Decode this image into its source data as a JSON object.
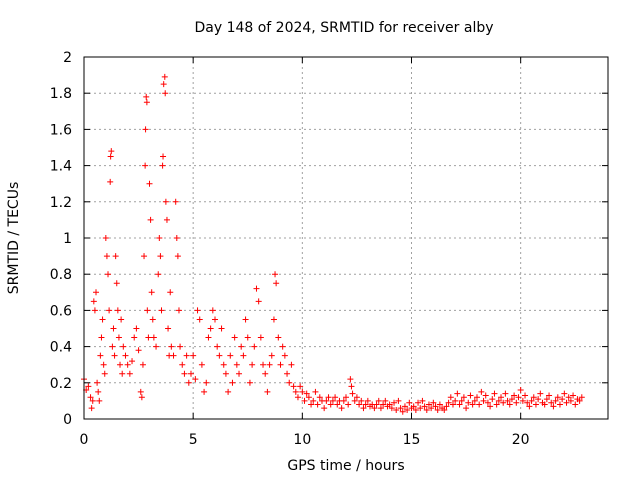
{
  "chart_data": {
    "type": "scatter",
    "title": "Day 148 of 2024, SRMTID for receiver alby",
    "xlabel": "GPS time / hours",
    "ylabel": "SRMTID / TECUs",
    "xlim": [
      0,
      24.0
    ],
    "ylim": [
      0,
      2
    ],
    "xticks": [
      0,
      5,
      10,
      15,
      20
    ],
    "xtick_labels": [
      "0",
      "5",
      "10",
      "15",
      "20"
    ],
    "yticks": [
      0,
      0.2,
      0.4,
      0.6,
      0.8,
      1,
      1.2,
      1.4,
      1.6,
      1.8,
      2
    ],
    "ytick_labels": [
      "0",
      "0.2",
      "0.4",
      "0.6",
      "0.8",
      "1",
      "1.2",
      "1.4",
      "1.6",
      "1.8",
      "2"
    ],
    "grid": true,
    "marker": "+",
    "color": "#ff0000",
    "series": [
      {
        "name": "SRMTID",
        "points": [
          [
            0.0,
            0.22
          ],
          [
            0.1,
            0.16
          ],
          [
            0.2,
            0.18
          ],
          [
            0.3,
            0.12
          ],
          [
            0.35,
            0.06
          ],
          [
            0.4,
            0.1
          ],
          [
            0.45,
            0.65
          ],
          [
            0.5,
            0.6
          ],
          [
            0.55,
            0.7
          ],
          [
            0.6,
            0.2
          ],
          [
            0.65,
            0.15
          ],
          [
            0.7,
            0.1
          ],
          [
            0.75,
            0.35
          ],
          [
            0.8,
            0.45
          ],
          [
            0.85,
            0.55
          ],
          [
            0.9,
            0.3
          ],
          [
            0.95,
            0.25
          ],
          [
            1.0,
            1.0
          ],
          [
            1.05,
            0.9
          ],
          [
            1.1,
            0.8
          ],
          [
            1.15,
            0.6
          ],
          [
            1.2,
            1.31
          ],
          [
            1.22,
            1.45
          ],
          [
            1.25,
            1.48
          ],
          [
            1.3,
            0.4
          ],
          [
            1.35,
            0.5
          ],
          [
            1.4,
            0.35
          ],
          [
            1.45,
            0.9
          ],
          [
            1.5,
            0.75
          ],
          [
            1.55,
            0.6
          ],
          [
            1.6,
            0.45
          ],
          [
            1.65,
            0.3
          ],
          [
            1.7,
            0.55
          ],
          [
            1.75,
            0.25
          ],
          [
            1.8,
            0.4
          ],
          [
            1.9,
            0.35
          ],
          [
            2.0,
            0.3
          ],
          [
            2.1,
            0.25
          ],
          [
            2.2,
            0.32
          ],
          [
            2.3,
            0.45
          ],
          [
            2.4,
            0.5
          ],
          [
            2.5,
            0.38
          ],
          [
            2.6,
            0.15
          ],
          [
            2.65,
            0.12
          ],
          [
            2.7,
            0.3
          ],
          [
            2.75,
            0.9
          ],
          [
            2.8,
            1.4
          ],
          [
            2.82,
            1.6
          ],
          [
            2.85,
            1.78
          ],
          [
            2.88,
            1.75
          ],
          [
            2.9,
            0.6
          ],
          [
            2.95,
            0.45
          ],
          [
            3.0,
            1.3
          ],
          [
            3.05,
            1.1
          ],
          [
            3.1,
            0.7
          ],
          [
            3.15,
            0.55
          ],
          [
            3.2,
            0.45
          ],
          [
            3.3,
            0.4
          ],
          [
            3.4,
            0.8
          ],
          [
            3.45,
            1.0
          ],
          [
            3.5,
            0.9
          ],
          [
            3.55,
            0.6
          ],
          [
            3.6,
            1.4
          ],
          [
            3.62,
            1.45
          ],
          [
            3.65,
            1.85
          ],
          [
            3.7,
            1.89
          ],
          [
            3.72,
            1.8
          ],
          [
            3.75,
            1.2
          ],
          [
            3.8,
            1.1
          ],
          [
            3.85,
            0.5
          ],
          [
            3.9,
            0.35
          ],
          [
            3.95,
            0.7
          ],
          [
            4.0,
            0.4
          ],
          [
            4.1,
            0.35
          ],
          [
            4.2,
            1.2
          ],
          [
            4.25,
            1.0
          ],
          [
            4.3,
            0.9
          ],
          [
            4.35,
            0.6
          ],
          [
            4.4,
            0.4
          ],
          [
            4.5,
            0.3
          ],
          [
            4.6,
            0.25
          ],
          [
            4.7,
            0.35
          ],
          [
            4.8,
            0.2
          ],
          [
            4.9,
            0.25
          ],
          [
            5.0,
            0.35
          ],
          [
            5.1,
            0.22
          ],
          [
            5.2,
            0.6
          ],
          [
            5.3,
            0.55
          ],
          [
            5.4,
            0.3
          ],
          [
            5.5,
            0.15
          ],
          [
            5.6,
            0.2
          ],
          [
            5.7,
            0.45
          ],
          [
            5.8,
            0.5
          ],
          [
            5.9,
            0.6
          ],
          [
            6.0,
            0.55
          ],
          [
            6.1,
            0.4
          ],
          [
            6.2,
            0.35
          ],
          [
            6.3,
            0.5
          ],
          [
            6.4,
            0.3
          ],
          [
            6.5,
            0.25
          ],
          [
            6.6,
            0.15
          ],
          [
            6.7,
            0.35
          ],
          [
            6.8,
            0.2
          ],
          [
            6.9,
            0.45
          ],
          [
            7.0,
            0.3
          ],
          [
            7.1,
            0.25
          ],
          [
            7.2,
            0.4
          ],
          [
            7.3,
            0.35
          ],
          [
            7.4,
            0.55
          ],
          [
            7.5,
            0.45
          ],
          [
            7.6,
            0.2
          ],
          [
            7.7,
            0.3
          ],
          [
            7.8,
            0.4
          ],
          [
            7.9,
            0.72
          ],
          [
            8.0,
            0.65
          ],
          [
            8.1,
            0.45
          ],
          [
            8.2,
            0.3
          ],
          [
            8.3,
            0.25
          ],
          [
            8.4,
            0.15
          ],
          [
            8.5,
            0.3
          ],
          [
            8.6,
            0.35
          ],
          [
            8.7,
            0.55
          ],
          [
            8.75,
            0.8
          ],
          [
            8.8,
            0.75
          ],
          [
            8.9,
            0.45
          ],
          [
            9.0,
            0.3
          ],
          [
            9.1,
            0.4
          ],
          [
            9.2,
            0.35
          ],
          [
            9.3,
            0.25
          ],
          [
            9.4,
            0.2
          ],
          [
            9.5,
            0.3
          ],
          [
            9.6,
            0.18
          ],
          [
            9.7,
            0.15
          ],
          [
            9.8,
            0.12
          ],
          [
            9.9,
            0.18
          ],
          [
            10.0,
            0.15
          ],
          [
            10.1,
            0.1
          ],
          [
            10.2,
            0.14
          ],
          [
            10.3,
            0.12
          ],
          [
            10.4,
            0.08
          ],
          [
            10.5,
            0.1
          ],
          [
            10.6,
            0.15
          ],
          [
            10.7,
            0.08
          ],
          [
            10.8,
            0.12
          ],
          [
            10.9,
            0.1
          ],
          [
            11.0,
            0.06
          ],
          [
            11.1,
            0.1
          ],
          [
            11.2,
            0.12
          ],
          [
            11.3,
            0.08
          ],
          [
            11.4,
            0.1
          ],
          [
            11.5,
            0.12
          ],
          [
            11.6,
            0.08
          ],
          [
            11.7,
            0.1
          ],
          [
            11.8,
            0.06
          ],
          [
            11.9,
            0.1
          ],
          [
            12.0,
            0.12
          ],
          [
            12.1,
            0.08
          ],
          [
            12.2,
            0.22
          ],
          [
            12.25,
            0.18
          ],
          [
            12.3,
            0.14
          ],
          [
            12.4,
            0.1
          ],
          [
            12.5,
            0.12
          ],
          [
            12.6,
            0.08
          ],
          [
            12.7,
            0.1
          ],
          [
            12.8,
            0.06
          ],
          [
            12.9,
            0.08
          ],
          [
            13.0,
            0.1
          ],
          [
            13.1,
            0.07
          ],
          [
            13.2,
            0.08
          ],
          [
            13.3,
            0.06
          ],
          [
            13.4,
            0.08
          ],
          [
            13.5,
            0.1
          ],
          [
            13.6,
            0.06
          ],
          [
            13.7,
            0.08
          ],
          [
            13.8,
            0.1
          ],
          [
            13.9,
            0.07
          ],
          [
            14.0,
            0.08
          ],
          [
            14.1,
            0.06
          ],
          [
            14.2,
            0.09
          ],
          [
            14.3,
            0.05
          ],
          [
            14.4,
            0.1
          ],
          [
            14.5,
            0.06
          ],
          [
            14.6,
            0.04
          ],
          [
            14.7,
            0.07
          ],
          [
            14.8,
            0.05
          ],
          [
            14.9,
            0.09
          ],
          [
            15.0,
            0.06
          ],
          [
            15.1,
            0.07
          ],
          [
            15.2,
            0.05
          ],
          [
            15.3,
            0.09
          ],
          [
            15.4,
            0.06
          ],
          [
            15.5,
            0.1
          ],
          [
            15.6,
            0.07
          ],
          [
            15.7,
            0.05
          ],
          [
            15.8,
            0.08
          ],
          [
            15.9,
            0.06
          ],
          [
            16.0,
            0.09
          ],
          [
            16.1,
            0.07
          ],
          [
            16.2,
            0.05
          ],
          [
            16.3,
            0.08
          ],
          [
            16.4,
            0.06
          ],
          [
            16.5,
            0.05
          ],
          [
            16.6,
            0.07
          ],
          [
            16.7,
            0.09
          ],
          [
            16.8,
            0.12
          ],
          [
            16.9,
            0.08
          ],
          [
            17.0,
            0.1
          ],
          [
            17.1,
            0.14
          ],
          [
            17.2,
            0.08
          ],
          [
            17.3,
            0.1
          ],
          [
            17.4,
            0.12
          ],
          [
            17.5,
            0.06
          ],
          [
            17.6,
            0.09
          ],
          [
            17.7,
            0.13
          ],
          [
            17.8,
            0.08
          ],
          [
            17.9,
            0.1
          ],
          [
            18.0,
            0.12
          ],
          [
            18.1,
            0.08
          ],
          [
            18.2,
            0.15
          ],
          [
            18.3,
            0.1
          ],
          [
            18.4,
            0.13
          ],
          [
            18.5,
            0.09
          ],
          [
            18.6,
            0.07
          ],
          [
            18.7,
            0.11
          ],
          [
            18.8,
            0.14
          ],
          [
            18.9,
            0.08
          ],
          [
            19.0,
            0.1
          ],
          [
            19.1,
            0.12
          ],
          [
            19.2,
            0.09
          ],
          [
            19.3,
            0.14
          ],
          [
            19.4,
            0.1
          ],
          [
            19.5,
            0.08
          ],
          [
            19.6,
            0.11
          ],
          [
            19.7,
            0.13
          ],
          [
            19.8,
            0.09
          ],
          [
            19.9,
            0.12
          ],
          [
            20.0,
            0.16
          ],
          [
            20.1,
            0.1
          ],
          [
            20.2,
            0.13
          ],
          [
            20.3,
            0.09
          ],
          [
            20.4,
            0.07
          ],
          [
            20.5,
            0.1
          ],
          [
            20.6,
            0.12
          ],
          [
            20.7,
            0.08
          ],
          [
            20.8,
            0.11
          ],
          [
            20.9,
            0.14
          ],
          [
            21.0,
            0.09
          ],
          [
            21.1,
            0.08
          ],
          [
            21.2,
            0.11
          ],
          [
            21.3,
            0.13
          ],
          [
            21.4,
            0.09
          ],
          [
            21.5,
            0.07
          ],
          [
            21.6,
            0.1
          ],
          [
            21.7,
            0.12
          ],
          [
            21.8,
            0.08
          ],
          [
            21.9,
            0.11
          ],
          [
            22.0,
            0.14
          ],
          [
            22.1,
            0.09
          ],
          [
            22.2,
            0.12
          ],
          [
            22.3,
            0.1
          ],
          [
            22.4,
            0.13
          ],
          [
            22.5,
            0.08
          ],
          [
            22.6,
            0.11
          ],
          [
            22.7,
            0.1
          ],
          [
            22.8,
            0.12
          ]
        ]
      }
    ]
  }
}
